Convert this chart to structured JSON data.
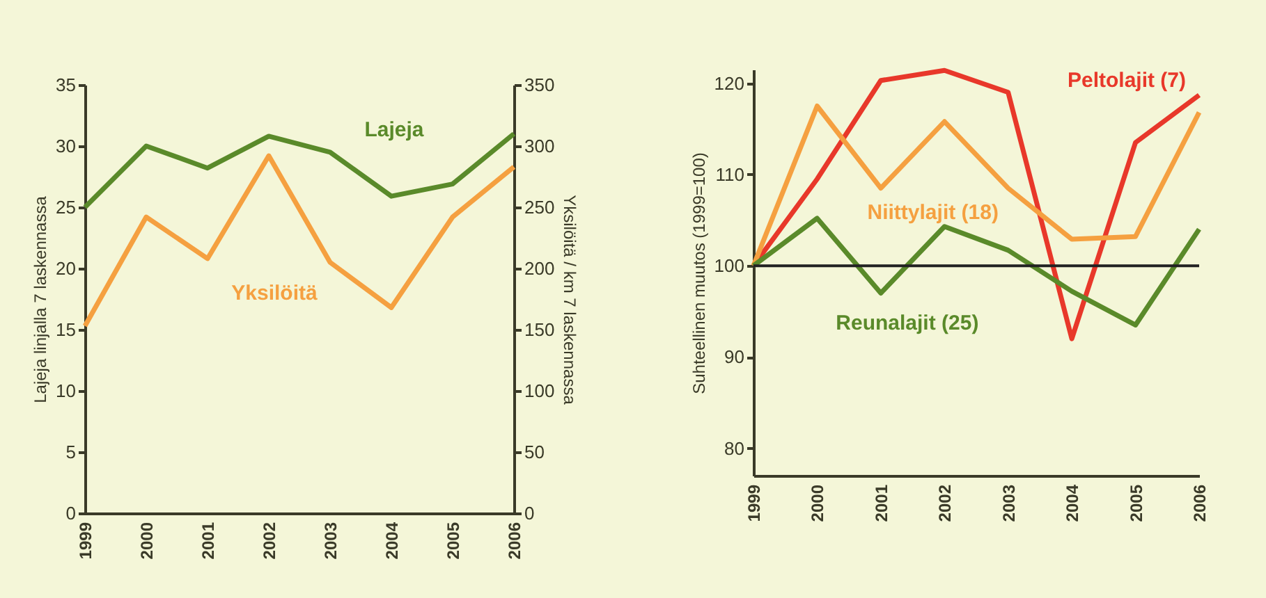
{
  "chart_data": [
    {
      "type": "line",
      "ylabel": "Lajeja linjalla 7 laskennassa",
      "y2label": "Yksilöitä / km 7 laskennassa",
      "x": [
        1999,
        2000,
        2001,
        2002,
        2003,
        2004,
        2005,
        2006
      ],
      "xlim": [
        1999,
        2006
      ],
      "xticks": [
        1999,
        2000,
        2001,
        2002,
        2003,
        2004,
        2005,
        2006
      ],
      "ylim": [
        0,
        35
      ],
      "yticks": [
        0,
        5,
        10,
        15,
        20,
        25,
        30,
        35
      ],
      "y2lim": [
        0,
        350
      ],
      "y2ticks": [
        0,
        50,
        100,
        150,
        200,
        250,
        300,
        350
      ],
      "series": [
        {
          "name": "Lajeja",
          "color": "#5a8a2a",
          "values": [
            25,
            30,
            28.2,
            30.8,
            29.5,
            25.9,
            26.9,
            31
          ]
        },
        {
          "name": "Yksilöitä",
          "color": "#f5a040",
          "axis": "y2",
          "values": [
            153,
            242,
            208,
            292,
            205,
            168,
            242,
            283
          ]
        }
      ],
      "grid": false
    },
    {
      "type": "line",
      "ylabel": "Suhteellinen muutos (1999=100)",
      "x": [
        1999,
        2000,
        2001,
        2002,
        2003,
        2004,
        2005,
        2006
      ],
      "xlim": [
        1999,
        2006
      ],
      "xticks": [
        1999,
        2000,
        2001,
        2002,
        2003,
        2004,
        2005,
        2006
      ],
      "ylim": [
        77,
        121.5
      ],
      "yticks": [
        80,
        90,
        100,
        110,
        120
      ],
      "series": [
        {
          "name": "Peltolajit (7)",
          "color": "#e8382a",
          "values": [
            100,
            109.5,
            120.3,
            121.4,
            119,
            92,
            113.5,
            118.7
          ]
        },
        {
          "name": "Niittylajit (18)",
          "color": "#f5a040",
          "values": [
            100,
            117.5,
            108.5,
            115.8,
            108.5,
            102.9,
            103.2,
            116.8
          ]
        },
        {
          "name": "Reunalajit (25)",
          "color": "#5a8a2a",
          "values": [
            100,
            105.2,
            97,
            104.3,
            101.7,
            97.2,
            93.5,
            104
          ]
        }
      ],
      "ref_lines": [
        {
          "axis": "y",
          "value": 100,
          "color": "#222222"
        }
      ],
      "grid": false
    }
  ]
}
